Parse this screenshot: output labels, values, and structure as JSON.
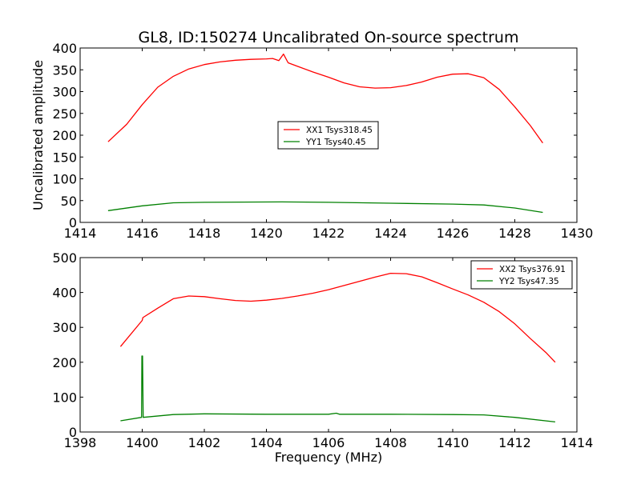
{
  "figure": {
    "title": "GL8, ID:150274 Uncalibrated On-source spectrum"
  },
  "colors": {
    "xx": "#ff0000",
    "yy": "#008000",
    "axes": "#000000",
    "background": "#ffffff"
  },
  "chart_data": [
    {
      "type": "line",
      "title": "GL8, ID:150274 Uncalibrated On-source spectrum",
      "xlabel": "",
      "ylabel": "Uncalibrated amplitude",
      "xlim": [
        1414,
        1430
      ],
      "ylim": [
        0,
        400
      ],
      "xticks": [
        "1414",
        "1416",
        "1418",
        "1420",
        "1422",
        "1424",
        "1426",
        "1428",
        "1430"
      ],
      "yticks": [
        "0",
        "50",
        "100",
        "150",
        "200",
        "250",
        "300",
        "350",
        "400"
      ],
      "grid": false,
      "legend_position": "center",
      "series": [
        {
          "name": "XX1 Tsys318.45",
          "color": "#ff0000",
          "x": [
            1414.9,
            1415.5,
            1416,
            1416.5,
            1417,
            1417.5,
            1418,
            1418.5,
            1419,
            1419.5,
            1420,
            1420.2,
            1420.4,
            1420.55,
            1420.7,
            1421,
            1421.5,
            1422,
            1422.5,
            1423,
            1423.5,
            1424,
            1424.5,
            1425,
            1425.5,
            1426,
            1426.5,
            1427,
            1427.5,
            1428,
            1428.5,
            1428.9
          ],
          "y": [
            185,
            225,
            270,
            310,
            335,
            352,
            362,
            368,
            372,
            374,
            375,
            376,
            371,
            386,
            366,
            358,
            345,
            333,
            320,
            311,
            308,
            309,
            314,
            322,
            333,
            340,
            341,
            332,
            305,
            265,
            222,
            182
          ]
        },
        {
          "name": "YY1 Tsys40.45",
          "color": "#008000",
          "x": [
            1414.9,
            1416,
            1417,
            1418,
            1420.5,
            1422,
            1424,
            1426,
            1427,
            1428,
            1428.9
          ],
          "y": [
            27,
            38,
            45,
            46,
            47,
            46,
            44,
            42,
            40,
            33,
            23
          ]
        }
      ]
    },
    {
      "type": "line",
      "title": "",
      "xlabel": "Frequency (MHz)",
      "ylabel": "",
      "xlim": [
        1398,
        1414
      ],
      "ylim": [
        0,
        500
      ],
      "xticks": [
        "1398",
        "1400",
        "1402",
        "1404",
        "1406",
        "1408",
        "1410",
        "1412",
        "1414"
      ],
      "yticks": [
        "0",
        "100",
        "200",
        "300",
        "400",
        "500"
      ],
      "grid": false,
      "legend_position": "top-right",
      "series": [
        {
          "name": "XX2 Tsys376.91",
          "color": "#ff0000",
          "x": [
            1399.3,
            1400,
            1400.02,
            1400.5,
            1401,
            1401.5,
            1402,
            1402.5,
            1403,
            1403.5,
            1404,
            1404.5,
            1405,
            1405.5,
            1406,
            1406.5,
            1407,
            1407.5,
            1408,
            1408.5,
            1409,
            1409.5,
            1410,
            1410.5,
            1411,
            1411.5,
            1412,
            1412.5,
            1413,
            1413.3
          ],
          "y": [
            245,
            320,
            328,
            355,
            382,
            390,
            388,
            382,
            377,
            375,
            378,
            383,
            390,
            398,
            408,
            420,
            432,
            444,
            455,
            454,
            445,
            428,
            410,
            393,
            372,
            345,
            310,
            268,
            228,
            200
          ]
        },
        {
          "name": "YY2 Tsys47.35",
          "color": "#008000",
          "x": [
            1399.3,
            1399.98,
            1399.99,
            1400.01,
            1400.03,
            1401,
            1402,
            1404,
            1406,
            1406.25,
            1406.35,
            1408,
            1410,
            1411,
            1412,
            1413.3
          ],
          "y": [
            32,
            42,
            218,
            218,
            42,
            50,
            52,
            51,
            51,
            54,
            51,
            51,
            50,
            49,
            42,
            29
          ]
        }
      ]
    }
  ]
}
